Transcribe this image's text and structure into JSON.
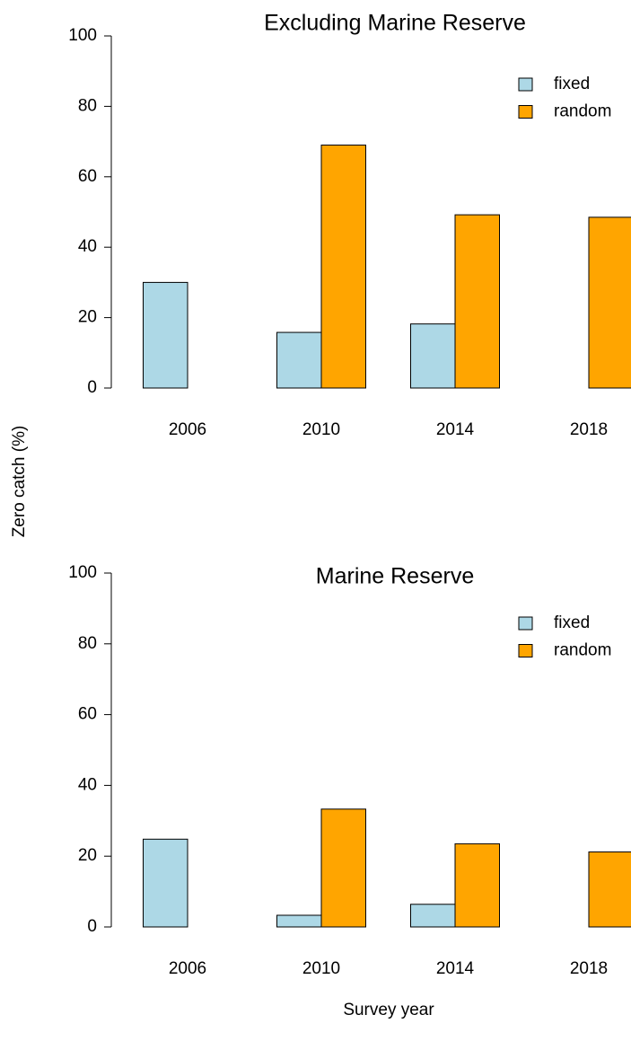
{
  "chart_data": [
    {
      "type": "bar",
      "title": "Excluding Marine Reserve",
      "ylabel": "Zero catch (%)",
      "categories": [
        "2006",
        "2010",
        "2014",
        "2018"
      ],
      "series": [
        {
          "name": "fixed",
          "color": "#add8e6",
          "values": [
            30,
            15.8,
            18.2,
            null
          ]
        },
        {
          "name": "random",
          "color": "#ffa500",
          "values": [
            null,
            69,
            49.2,
            48.5
          ]
        }
      ],
      "ylim": [
        0,
        100
      ],
      "yticks": [
        0,
        20,
        40,
        60,
        80,
        100
      ],
      "legend": "top-right"
    },
    {
      "type": "bar",
      "title": "Marine Reserve",
      "xlabel": "Survey year",
      "categories": [
        "2006",
        "2010",
        "2014",
        "2018"
      ],
      "series": [
        {
          "name": "fixed",
          "color": "#add8e6",
          "values": [
            24.8,
            3.3,
            6.4,
            null
          ]
        },
        {
          "name": "random",
          "color": "#ffa500",
          "values": [
            null,
            33.3,
            23.5,
            21.2
          ]
        }
      ],
      "ylim": [
        0,
        100
      ],
      "yticks": [
        0,
        20,
        40,
        60,
        80,
        100
      ],
      "legend": "top-right"
    }
  ]
}
